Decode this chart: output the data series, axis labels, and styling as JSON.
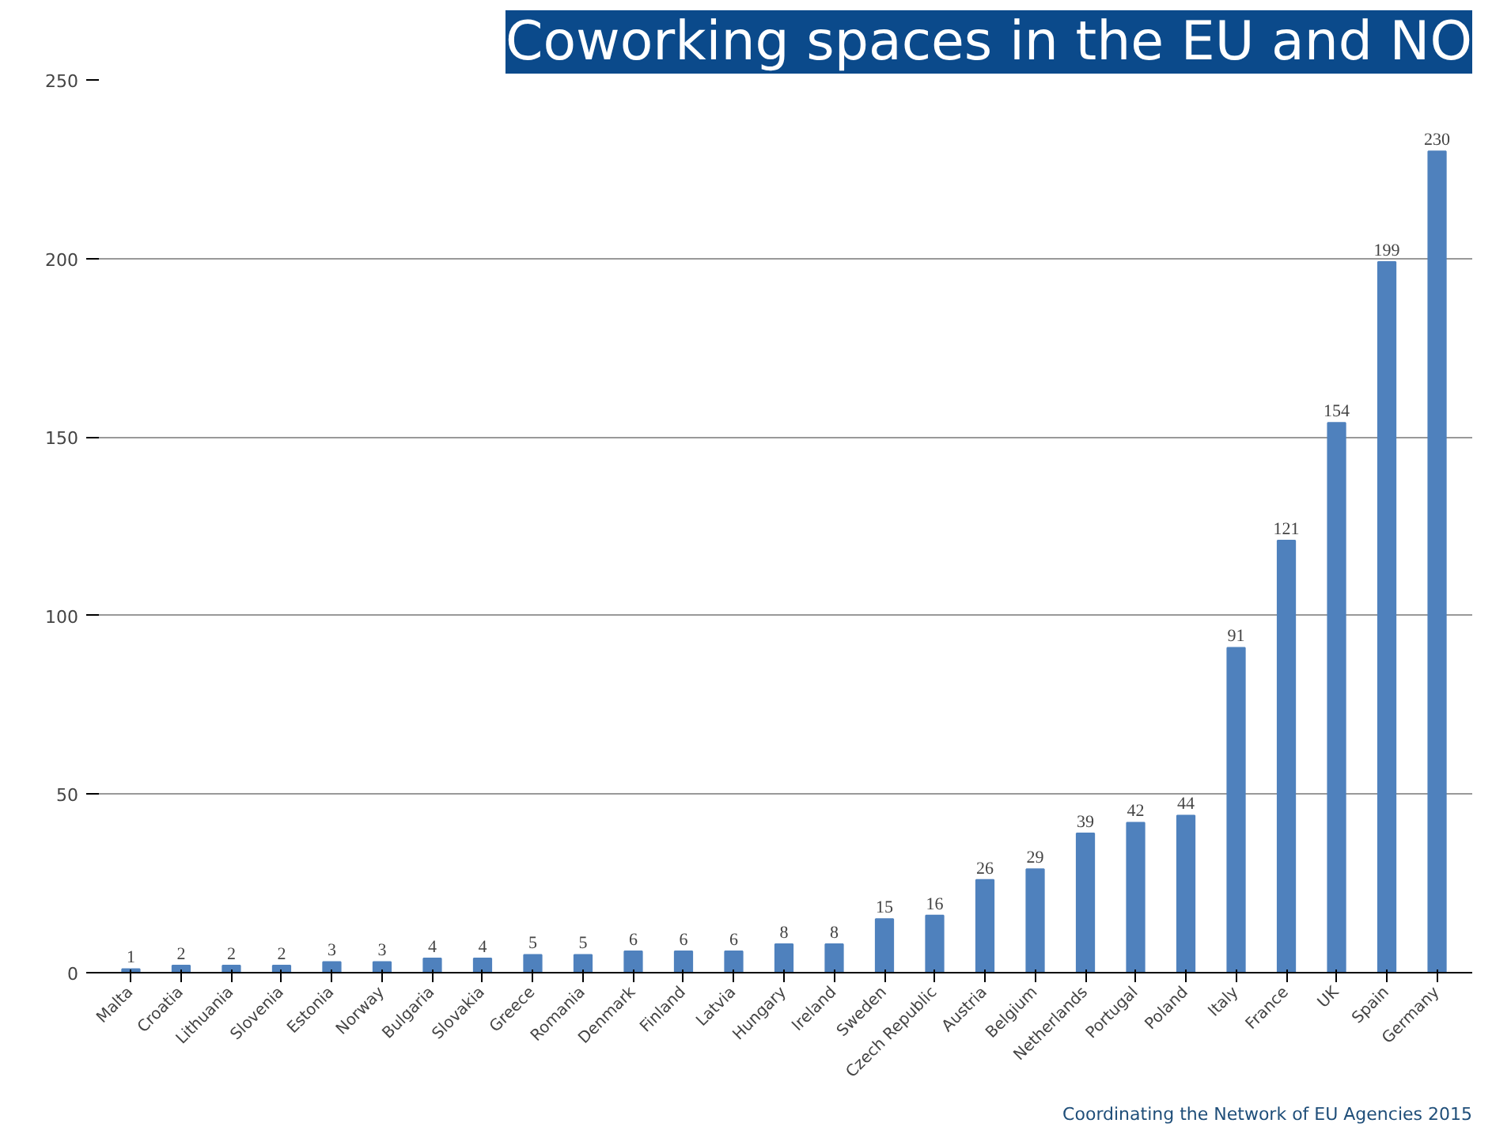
{
  "chart_data": {
    "type": "bar",
    "title": "Coworking spaces in the EU and NO",
    "categories": [
      "Malta",
      "Croatia",
      "Lithuania",
      "Slovenia",
      "Estonia",
      "Norway",
      "Bulgaria",
      "Slovakia",
      "Greece",
      "Romania",
      "Denmark",
      "Finland",
      "Latvia",
      "Hungary",
      "Ireland",
      "Sweden",
      "Czech Republic",
      "Austria",
      "Belgium",
      "Netherlands",
      "Portugal",
      "Poland",
      "Italy",
      "France",
      "UK",
      "Spain",
      "Germany"
    ],
    "values": [
      1,
      2,
      2,
      2,
      3,
      3,
      4,
      4,
      5,
      5,
      6,
      6,
      6,
      8,
      8,
      15,
      16,
      26,
      29,
      39,
      42,
      44,
      91,
      121,
      154,
      199,
      230
    ],
    "color": "#4f81bd",
    "ylim": [
      0,
      250
    ],
    "yticks": [
      0,
      50,
      100,
      150,
      200,
      250
    ],
    "grid": "y",
    "data_labels": true,
    "annotations": [
      "Coordinating the Network of EU Agencies 2015"
    ]
  }
}
